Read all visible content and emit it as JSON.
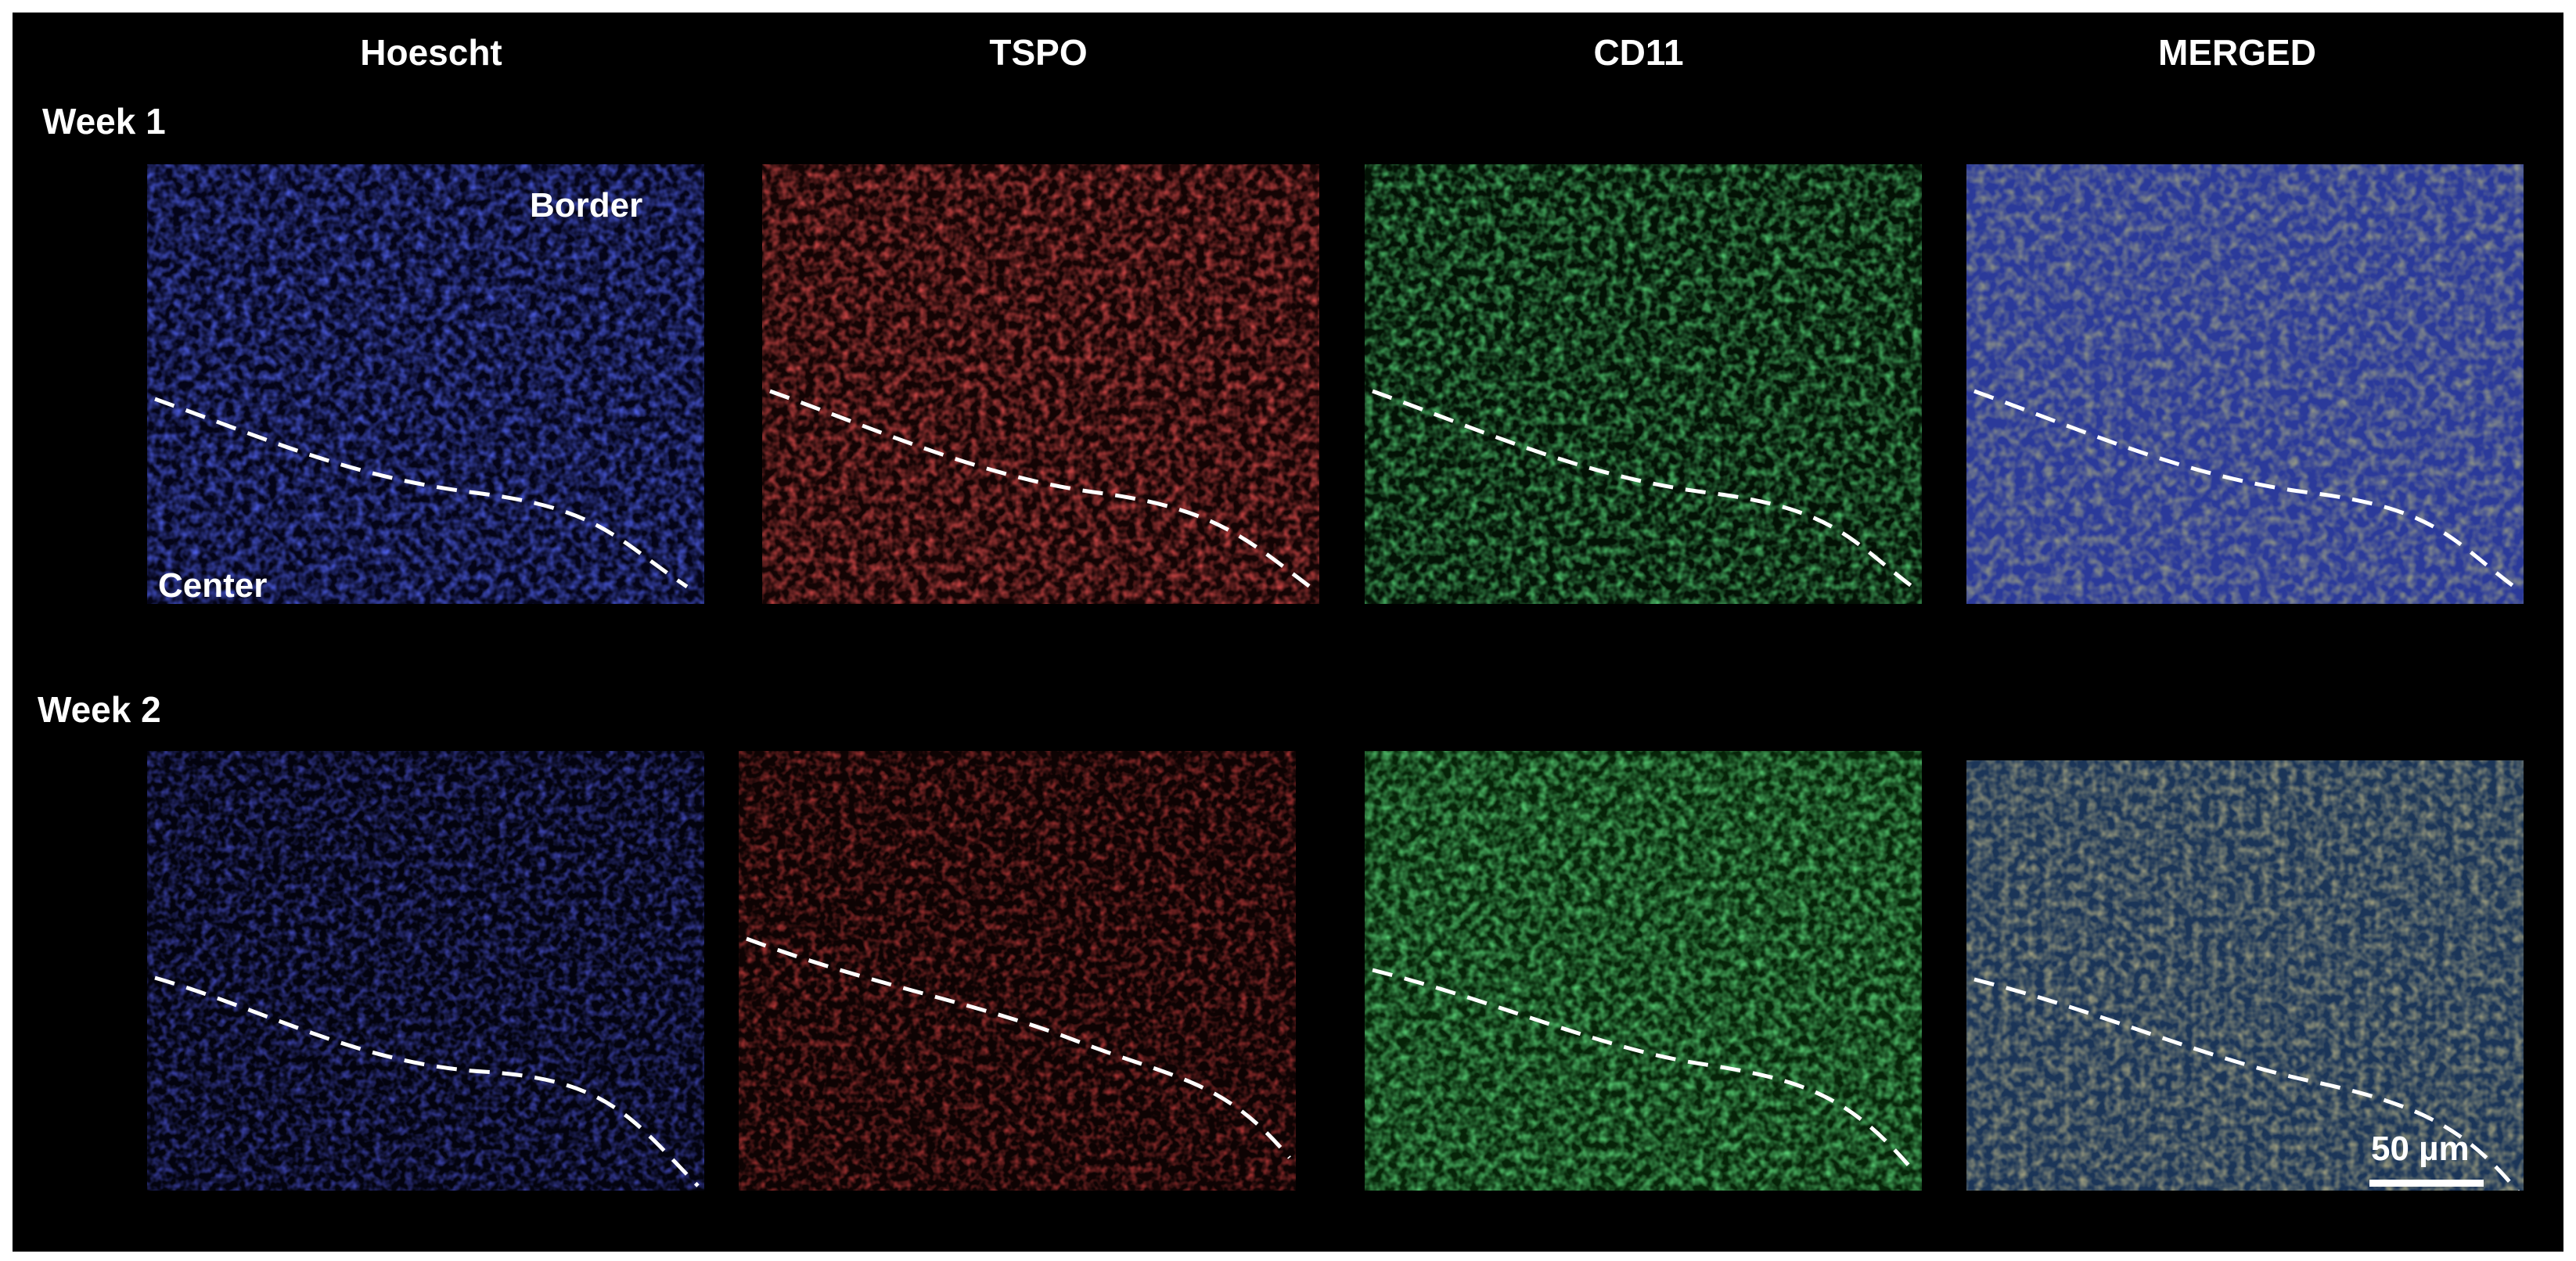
{
  "columns": [
    "Hoescht",
    "TSPO",
    "CD11",
    "MERGED"
  ],
  "rows": [
    "Week 1",
    "Week 2"
  ],
  "regions": {
    "border": "Border",
    "center": "Center"
  },
  "scale_bar": {
    "label": "50 µm"
  },
  "colors": {
    "background": "#000000",
    "hoescht": "#1a2ccf",
    "tspo": "#c01818",
    "cd11": "#1fa83a",
    "merged_base": "#2b3a9a",
    "merged_overlay": "#8a8a2a",
    "boundary_line": "#ffffff"
  }
}
